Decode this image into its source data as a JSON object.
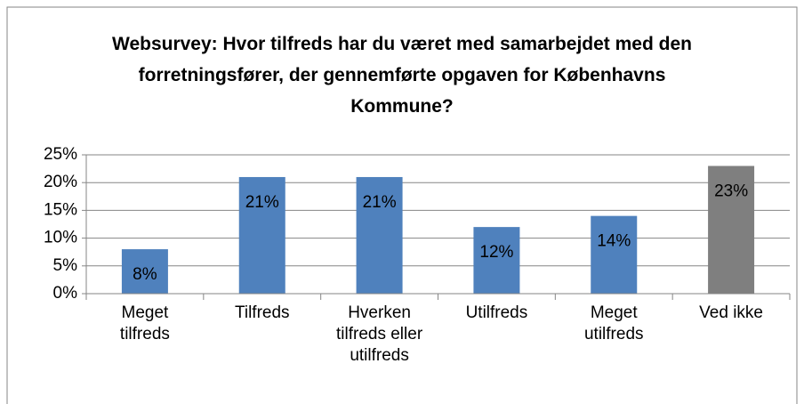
{
  "chart_data": {
    "type": "bar",
    "title": "Websurvey: Hvor tilfreds har du været med samarbejdet med den forretningsfører, der gennemførte opgaven for Københavns Kommune?",
    "categories": [
      "Meget tilfreds",
      "Tilfreds",
      "Hverken tilfreds eller utilfreds",
      "Utilfreds",
      "Meget utilfreds",
      "Ved ikke"
    ],
    "values": [
      8,
      21,
      21,
      12,
      14,
      23
    ],
    "value_labels": [
      "8%",
      "21%",
      "21%",
      "12%",
      "14%",
      "23%"
    ],
    "colors": [
      "#4f81bd",
      "#4f81bd",
      "#4f81bd",
      "#4f81bd",
      "#4f81bd",
      "#7f7f7f"
    ],
    "ylim": [
      0,
      25
    ],
    "yticks": [
      {
        "value": 0,
        "label": "0%"
      },
      {
        "value": 5,
        "label": "5%"
      },
      {
        "value": 10,
        "label": "10%"
      },
      {
        "value": 15,
        "label": "15%"
      },
      {
        "value": 20,
        "label": "20%"
      },
      {
        "value": 25,
        "label": "25%"
      }
    ],
    "grid": true
  }
}
